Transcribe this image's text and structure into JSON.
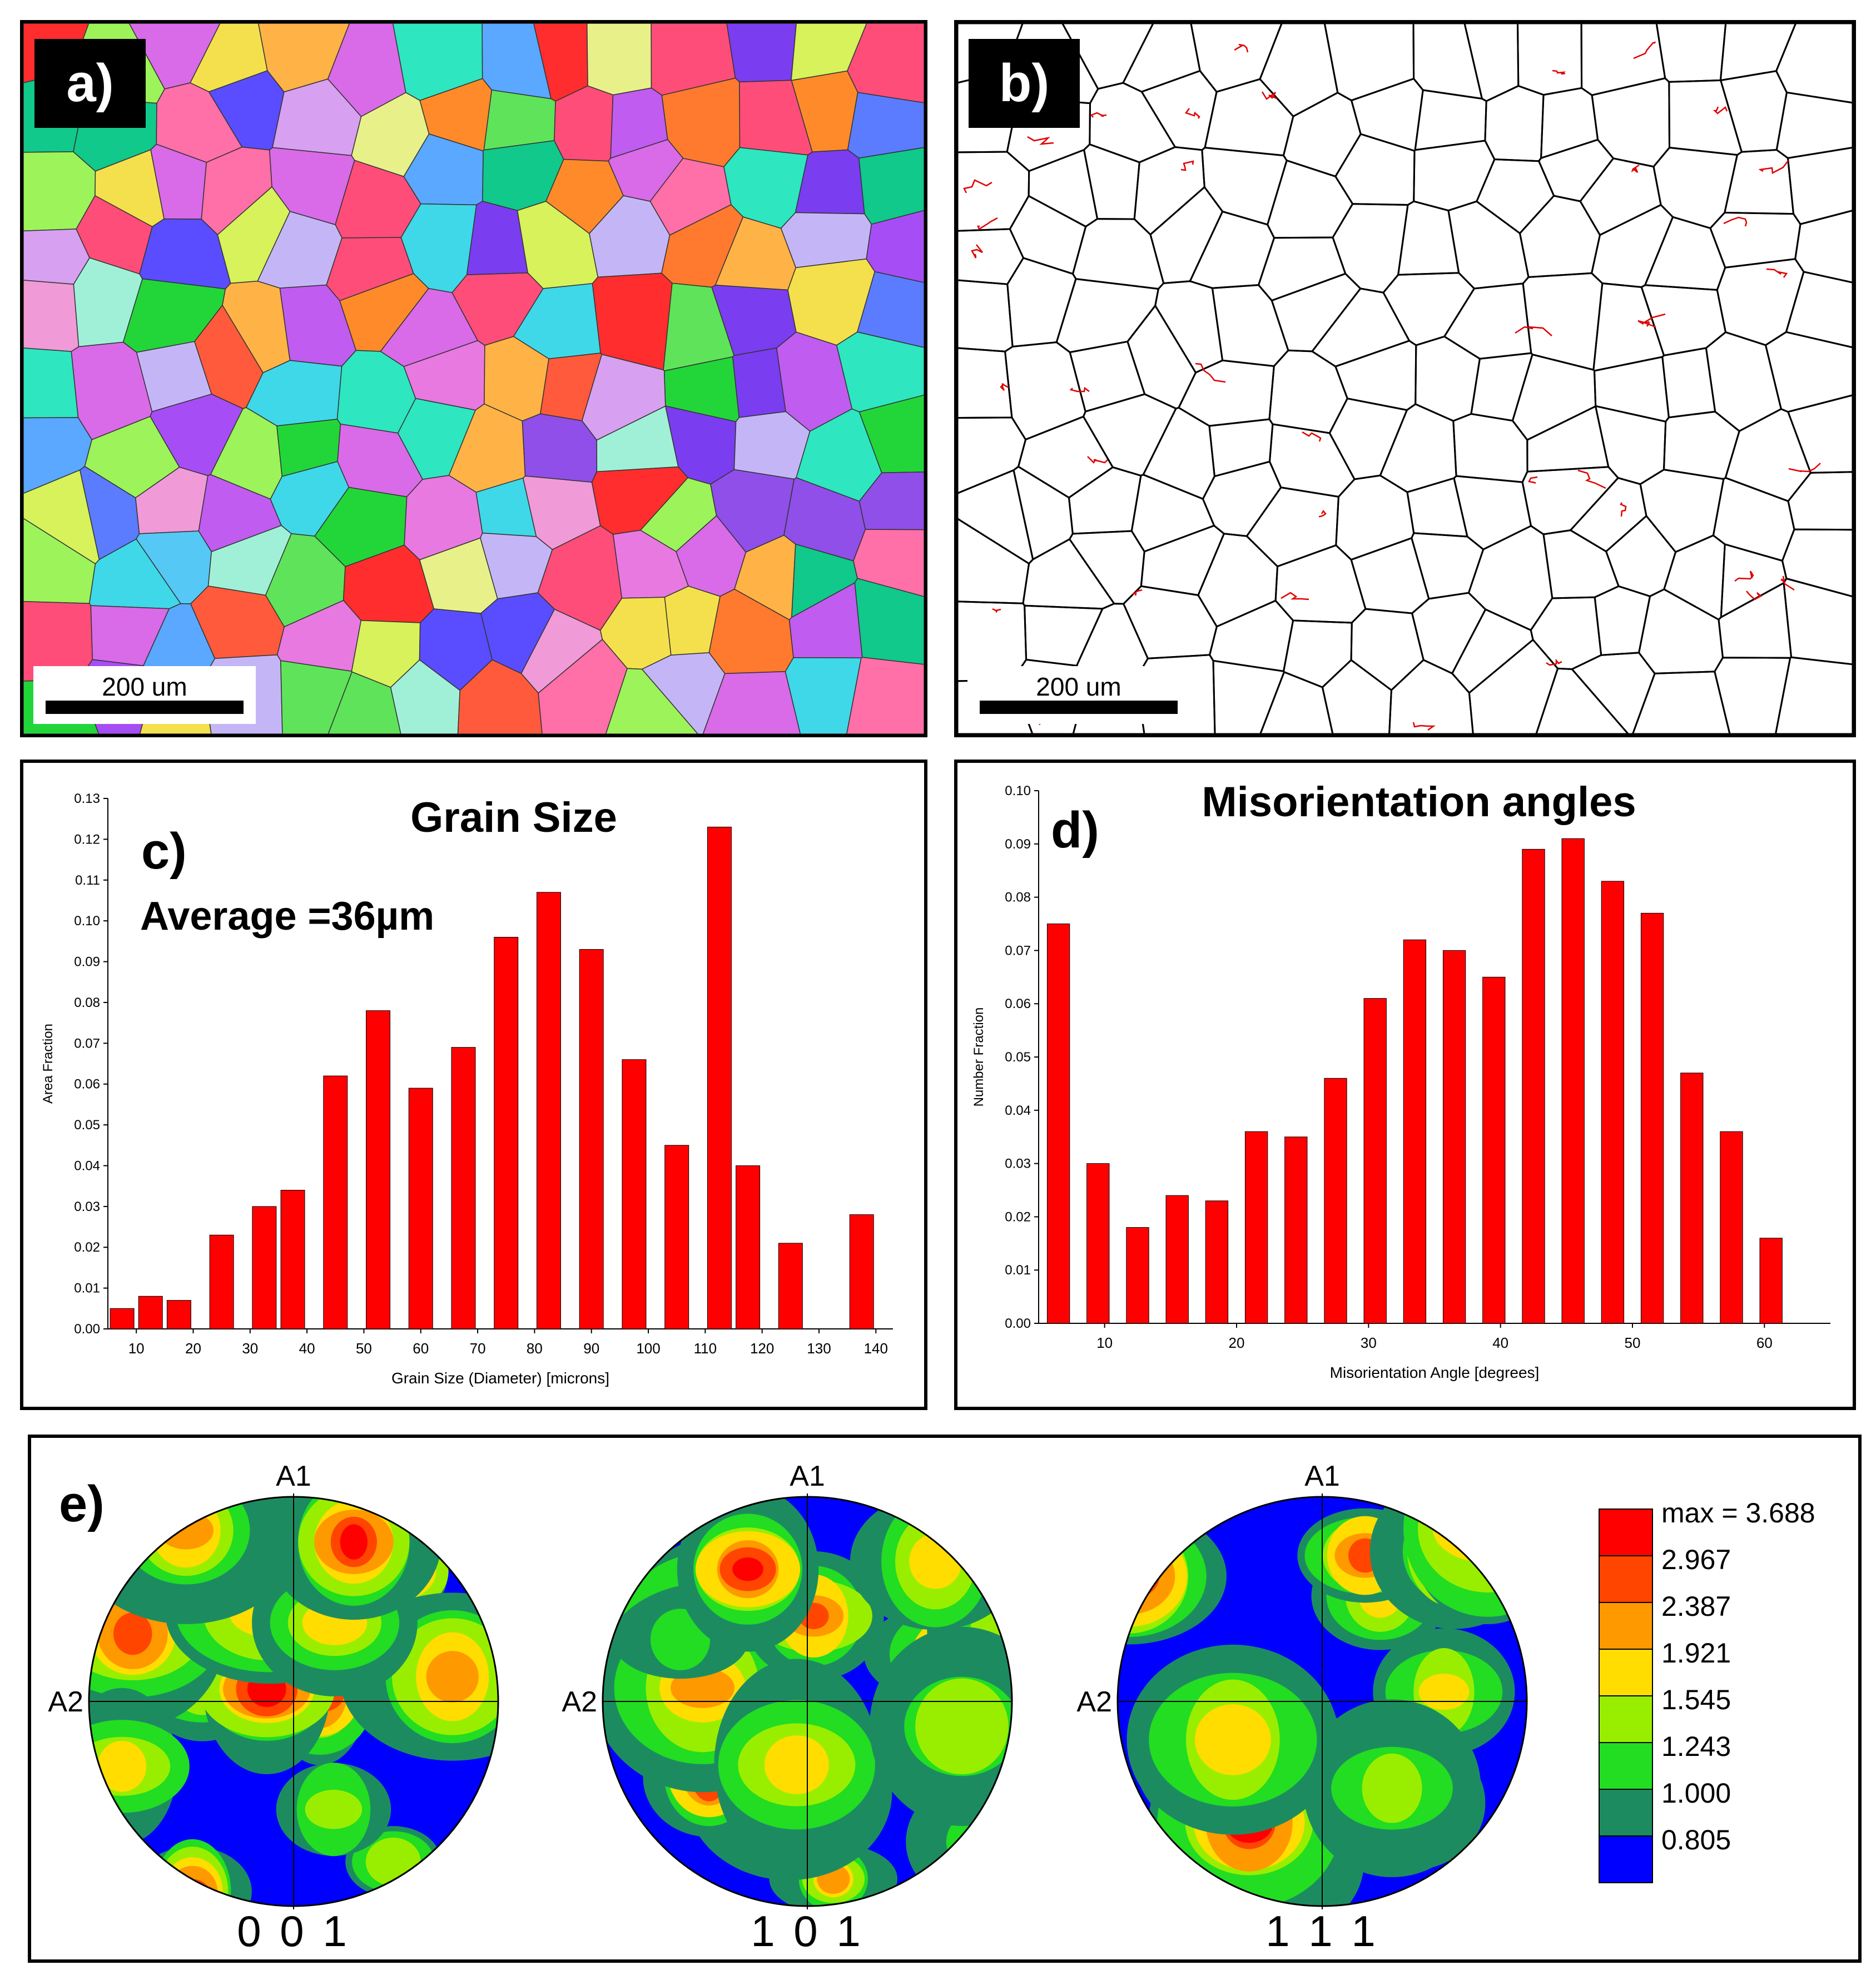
{
  "panels": {
    "a": {
      "letter": "a)",
      "scale_label": "200 um"
    },
    "b": {
      "letter": "b)",
      "scale_label": "200 um"
    },
    "c": {
      "letter": "c)",
      "average": "Average =36µm"
    },
    "d": {
      "letter": "d)"
    },
    "e": {
      "letter": "e)"
    }
  },
  "chart_data": [
    {
      "type": "bar",
      "title": "Grain Size",
      "xlabel": "Grain Size (Diameter) [microns]",
      "ylabel": "Area Fraction",
      "x": [
        7.5,
        12.5,
        17.5,
        25,
        32.5,
        37.5,
        45,
        52.5,
        60,
        67.5,
        75,
        82.5,
        90,
        97.5,
        105,
        112.5,
        117.5,
        125,
        137.5
      ],
      "values": [
        0.005,
        0.008,
        0.007,
        0.023,
        0.03,
        0.034,
        0.062,
        0.078,
        0.059,
        0.069,
        0.096,
        0.107,
        0.093,
        0.066,
        0.045,
        0.123,
        0.04,
        0.021,
        0.028
      ],
      "xlim": [
        5,
        143
      ],
      "ylim": [
        0,
        0.13
      ],
      "xticks": [
        "10",
        "20",
        "30",
        "40",
        "50",
        "60",
        "70",
        "80",
        "90",
        "100",
        "110",
        "120",
        "130",
        "140"
      ],
      "xtick_values": [
        10,
        20,
        30,
        40,
        50,
        60,
        70,
        80,
        90,
        100,
        110,
        120,
        130,
        140
      ],
      "yticks": [
        "0.00",
        "0.01",
        "0.02",
        "0.03",
        "0.04",
        "0.05",
        "0.06",
        "0.07",
        "0.08",
        "0.09",
        "0.10",
        "0.11",
        "0.12",
        "0.13"
      ],
      "ytick_values": [
        0,
        0.01,
        0.02,
        0.03,
        0.04,
        0.05,
        0.06,
        0.07,
        0.08,
        0.09,
        0.1,
        0.11,
        0.12,
        0.13
      ],
      "color": "#ff0000"
    },
    {
      "type": "bar",
      "title": "Misorientation angles",
      "xlabel": "Misorientation Angle [degrees]",
      "ylabel": "Number Fraction",
      "x": [
        6.5,
        9.5,
        12.5,
        15.5,
        18.5,
        21.5,
        24.5,
        27.5,
        30.5,
        33.5,
        36.5,
        39.5,
        42.5,
        45.5,
        48.5,
        51.5,
        54.5,
        57.5,
        60.5
      ],
      "values": [
        0.075,
        0.03,
        0.018,
        0.024,
        0.023,
        0.036,
        0.035,
        0.046,
        0.061,
        0.072,
        0.07,
        0.065,
        0.089,
        0.091,
        0.083,
        0.077,
        0.047,
        0.036,
        0.016
      ],
      "xlim": [
        5,
        65
      ],
      "ylim": [
        0,
        0.1
      ],
      "xticks": [
        "10",
        "20",
        "30",
        "40",
        "50",
        "60"
      ],
      "xtick_values": [
        10,
        20,
        30,
        40,
        50,
        60
      ],
      "yticks": [
        "0.00",
        "0.01",
        "0.02",
        "0.03",
        "0.04",
        "0.05",
        "0.06",
        "0.07",
        "0.08",
        "0.09",
        "0.10"
      ],
      "ytick_values": [
        0,
        0.01,
        0.02,
        0.03,
        0.04,
        0.05,
        0.06,
        0.07,
        0.08,
        0.09,
        0.1
      ],
      "color": "#ff0000"
    }
  ],
  "pole_figures": {
    "axis_top": "A1",
    "axis_left": "A2",
    "figures": [
      {
        "label": "0 0 1"
      },
      {
        "label": "1 0 1"
      },
      {
        "label": "1 1 1"
      }
    ],
    "legend": [
      {
        "label": "max = 3.688",
        "color": "#ff0000"
      },
      {
        "label": "2.967",
        "color": "#ff4500"
      },
      {
        "label": "2.387",
        "color": "#ff9900"
      },
      {
        "label": "1.921",
        "color": "#ffdd00"
      },
      {
        "label": "1.545",
        "color": "#99ee00"
      },
      {
        "label": "1.243",
        "color": "#22dd22"
      },
      {
        "label": "1.000",
        "color": "#1c8c60"
      },
      {
        "label": "0.805",
        "color": "#0000ff"
      }
    ]
  },
  "colors": {
    "bar": "#ff0000",
    "boundary_high": "#000000",
    "boundary_low": "#e00000"
  }
}
